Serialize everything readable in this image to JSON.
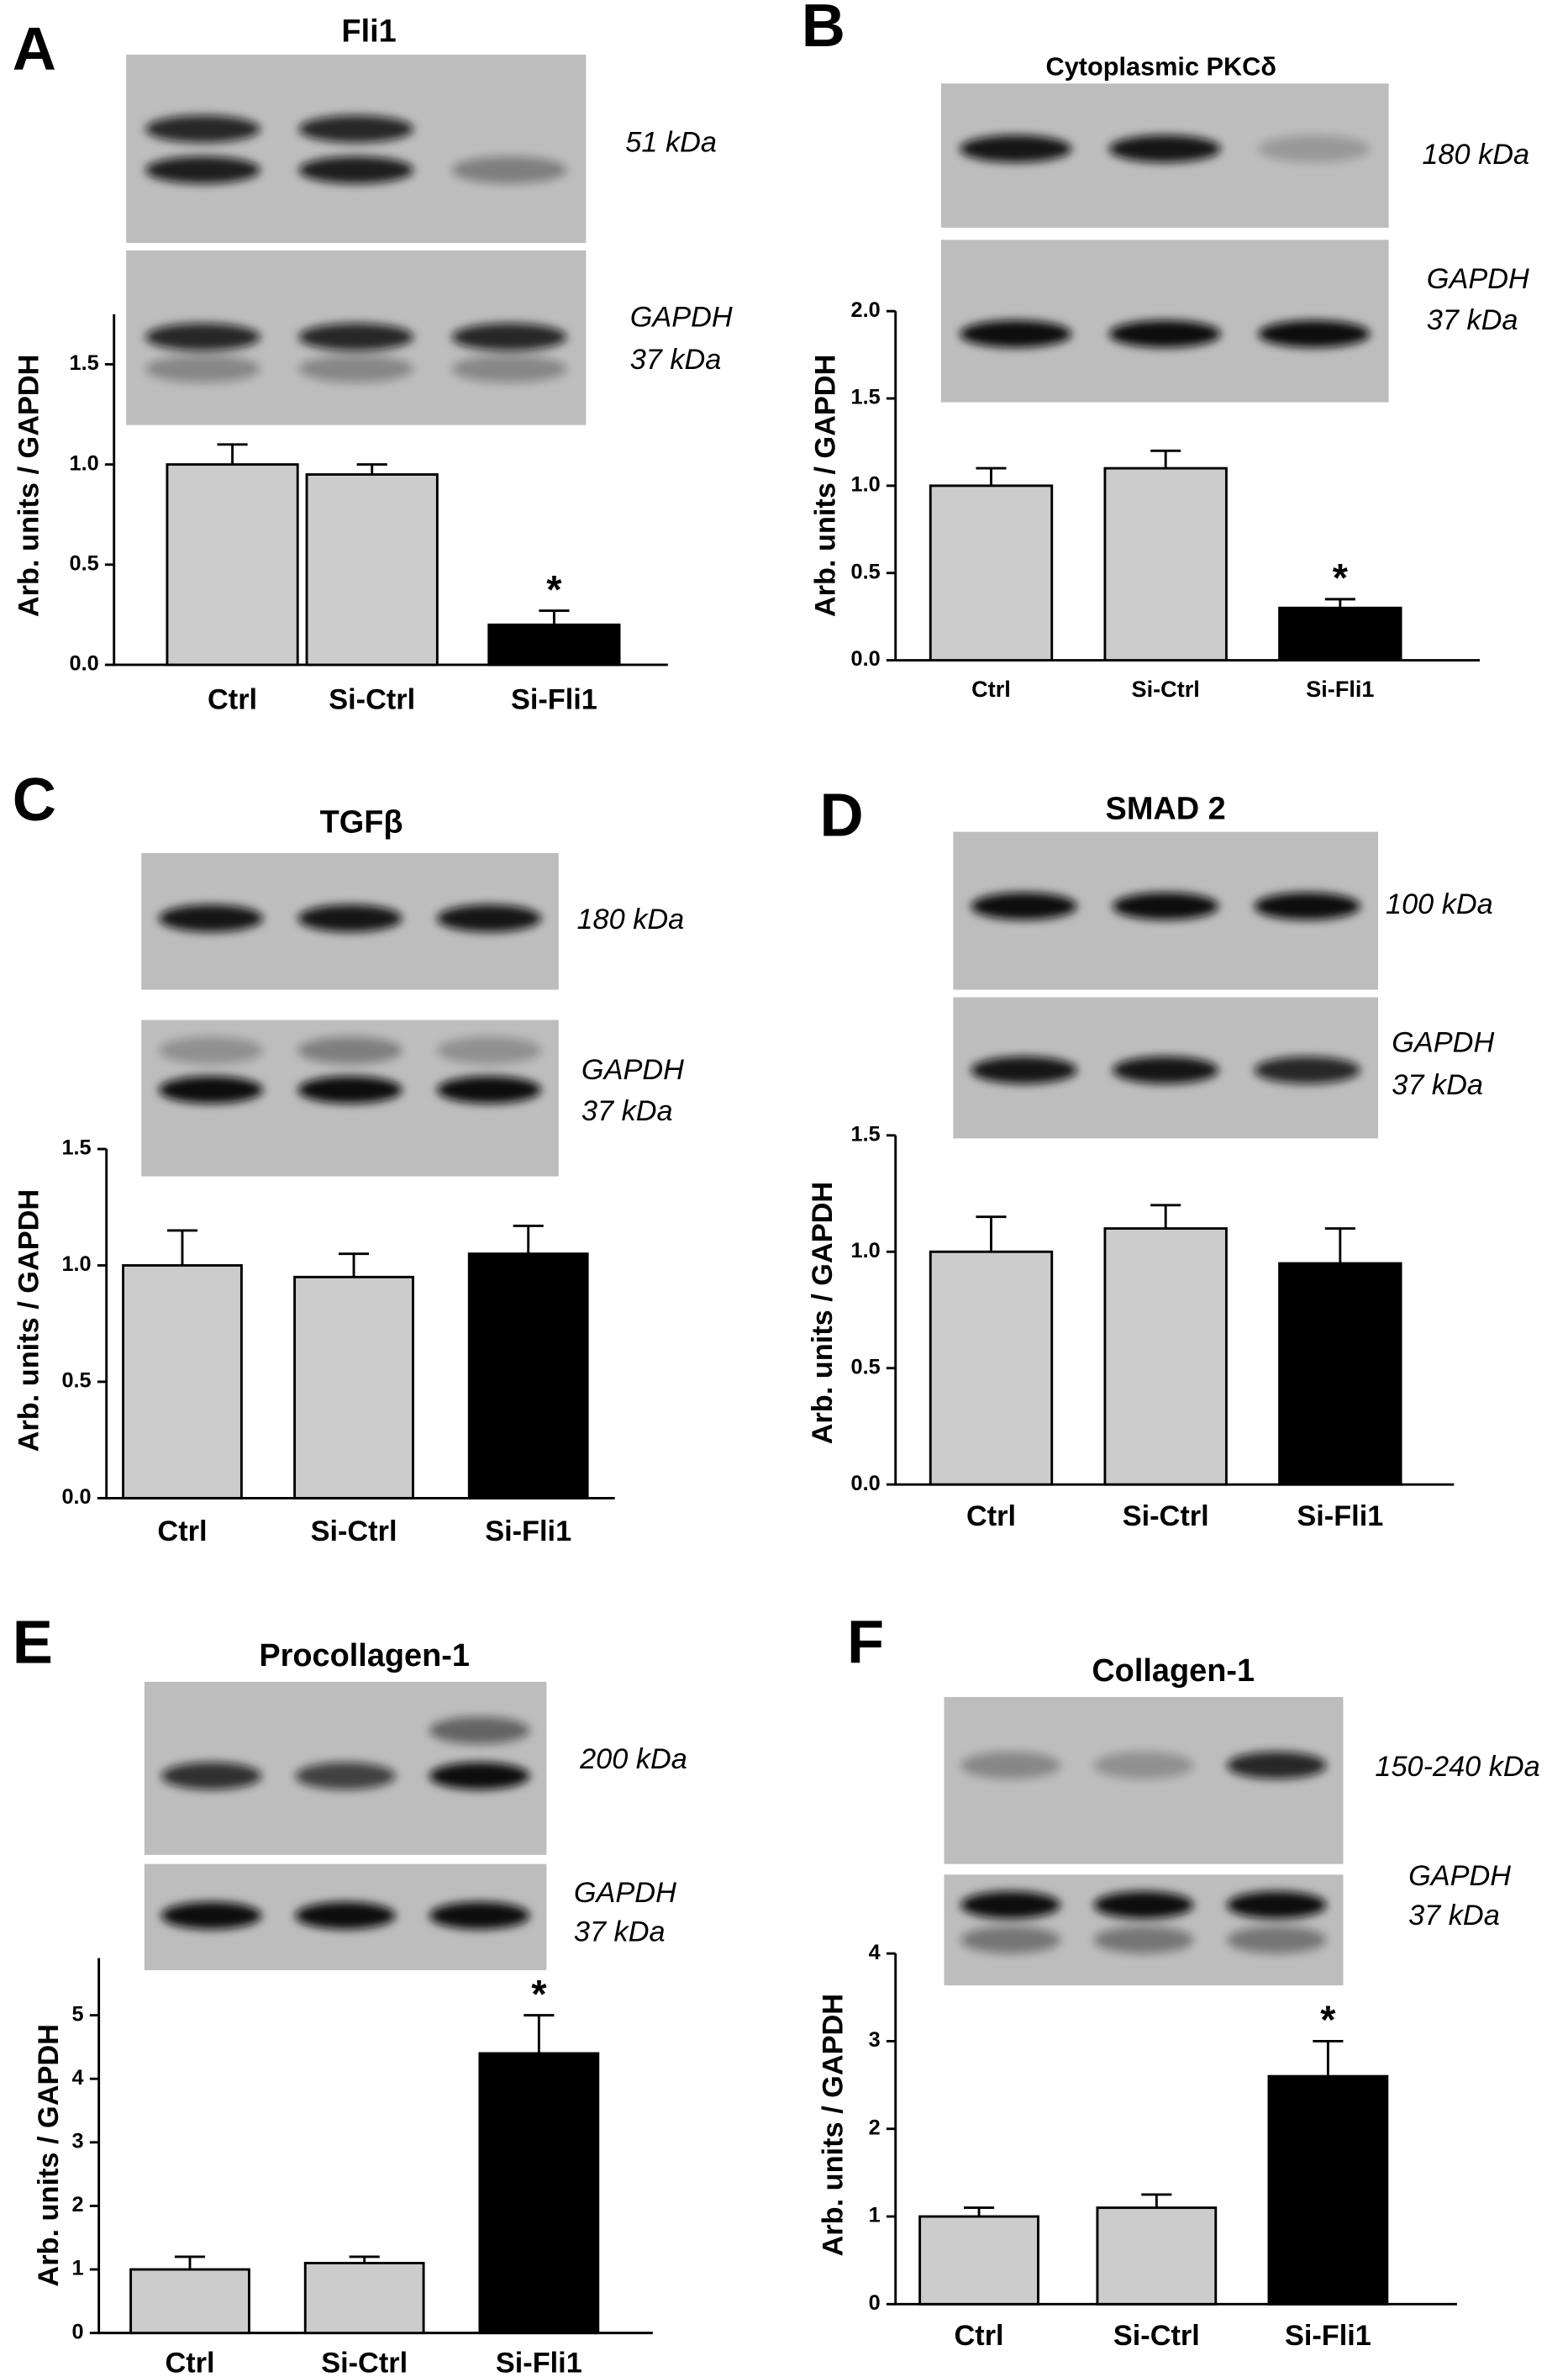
{
  "chart_data": [
    {
      "type": "bar",
      "panel": "A",
      "title": "Fli1",
      "blot_labels": [
        "51 kDa",
        "GAPDH",
        "37 kDa"
      ],
      "ylabel": "Arb. units / GAPDH",
      "categories": [
        "Ctrl",
        "Si-Ctrl",
        "Si-Fli1"
      ],
      "values": [
        1.0,
        0.95,
        0.2
      ],
      "errors": [
        0.1,
        0.05,
        0.07
      ],
      "colors": [
        "#cccccc",
        "#cccccc",
        "#000000"
      ],
      "annotations": [
        null,
        null,
        "*"
      ],
      "ylim": [
        0,
        1.75
      ],
      "yticks": [
        {
          "value": 0,
          "label": "0.0"
        },
        0.5,
        {
          "value": 1,
          "label": "1.0"
        },
        1.5
      ]
    },
    {
      "type": "bar",
      "panel": "B",
      "title": "Cytoplasmic PKCδ",
      "blot_labels": [
        "180 kDa",
        "GAPDH",
        "37 kDa"
      ],
      "ylabel": "Arb. units / GAPDH",
      "categories": [
        "Ctrl",
        "Si-Ctrl",
        "Si-Fli1"
      ],
      "values": [
        1.0,
        1.1,
        0.3
      ],
      "errors": [
        0.1,
        0.1,
        0.05
      ],
      "colors": [
        "#cccccc",
        "#cccccc",
        "#000000"
      ],
      "annotations": [
        null,
        null,
        "*"
      ],
      "ylim": [
        0,
        2
      ],
      "yticks": [
        {
          "value": 0,
          "label": "0.0"
        },
        0.5,
        {
          "value": 1,
          "label": "1.0"
        },
        1.5,
        {
          "value": 2,
          "label": "2.0"
        }
      ]
    },
    {
      "type": "bar",
      "panel": "C",
      "title": "TGFβ",
      "blot_labels": [
        "180 kDa",
        "GAPDH",
        "37 kDa"
      ],
      "ylabel": "Arb. units / GAPDH",
      "categories": [
        "Ctrl",
        "Si-Ctrl",
        "Si-Fli1"
      ],
      "values": [
        1.0,
        0.95,
        1.05
      ],
      "errors": [
        0.15,
        0.1,
        0.12
      ],
      "colors": [
        "#cccccc",
        "#cccccc",
        "#000000"
      ],
      "annotations": [
        null,
        null,
        null
      ],
      "ylim": [
        0,
        1.5
      ],
      "yticks": [
        {
          "value": 0,
          "label": "0.0"
        },
        0.5,
        {
          "value": 1,
          "label": "1.0"
        },
        1.5
      ]
    },
    {
      "type": "bar",
      "panel": "D",
      "title": "SMAD 2",
      "blot_labels": [
        "100 kDa",
        "GAPDH",
        "37 kDa"
      ],
      "ylabel": "Arb. units / GAPDH",
      "categories": [
        "Ctrl",
        "Si-Ctrl",
        "Si-Fli1"
      ],
      "values": [
        1.0,
        1.1,
        0.95
      ],
      "errors": [
        0.15,
        0.1,
        0.15
      ],
      "colors": [
        "#cccccc",
        "#cccccc",
        "#000000"
      ],
      "annotations": [
        null,
        null,
        null
      ],
      "ylim": [
        0,
        1.5
      ],
      "yticks": [
        {
          "value": 0,
          "label": "0.0"
        },
        0.5,
        {
          "value": 1,
          "label": "1.0"
        },
        1.5
      ]
    },
    {
      "type": "bar",
      "panel": "E",
      "title": "Procollagen-1",
      "blot_labels": [
        "200 kDa",
        "GAPDH",
        "37 kDa"
      ],
      "ylabel": "Arb. units / GAPDH",
      "categories": [
        "Ctrl",
        "Si-Ctrl",
        "Si-Fli1"
      ],
      "values": [
        1.0,
        1.1,
        4.4
      ],
      "errors": [
        0.2,
        0.1,
        0.6
      ],
      "colors": [
        "#cccccc",
        "#cccccc",
        "#000000"
      ],
      "annotations": [
        null,
        null,
        "*"
      ],
      "ylim": [
        0,
        5.9
      ],
      "yticks": [
        0,
        1,
        2,
        3,
        4,
        5
      ]
    },
    {
      "type": "bar",
      "panel": "F",
      "title": "Collagen-1",
      "blot_labels": [
        "150-240 kDa",
        "GAPDH",
        "37 kDa"
      ],
      "ylabel": "Arb. units / GAPDH",
      "categories": [
        "Ctrl",
        "Si-Ctrl",
        "Si-Fli1"
      ],
      "values": [
        1.0,
        1.1,
        2.6
      ],
      "errors": [
        0.1,
        0.15,
        0.4
      ],
      "colors": [
        "#cccccc",
        "#cccccc",
        "#000000"
      ],
      "annotations": [
        null,
        null,
        "*"
      ],
      "ylim": [
        0,
        4
      ],
      "yticks": [
        0,
        1,
        2,
        3,
        4
      ]
    }
  ]
}
